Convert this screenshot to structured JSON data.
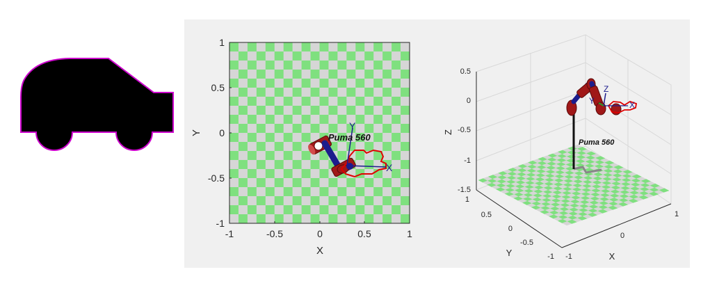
{
  "car_icon": {
    "fill": "#000000",
    "outline": "#cc00cc"
  },
  "robot": {
    "name": "Puma 560",
    "frame_labels": {
      "x": "X",
      "y": "Y",
      "z": "Z"
    },
    "link_color": "#b01c1c",
    "joint_color": "#1c1c8c",
    "gripper_color": "#e00000"
  },
  "plot_top": {
    "xlabel": "X",
    "ylabel": "Y",
    "x_ticks": [
      "-1",
      "-0.5",
      "0",
      "0.5",
      "1"
    ],
    "y_ticks": [
      "1",
      "0.5",
      "0",
      "-0.5",
      "-1"
    ],
    "floor_colors": [
      "#7fe07f",
      "#d6d6d6"
    ]
  },
  "plot_3d": {
    "xlabel": "X",
    "ylabel": "Y",
    "zlabel": "Z",
    "z_ticks": [
      "0.5",
      "0",
      "-0.5",
      "-1",
      "-1.5"
    ],
    "x_ticks": [
      "-1",
      "0",
      "1"
    ],
    "y_ticks": [
      "1",
      "0.5",
      "0",
      "-0.5",
      "-1"
    ]
  }
}
